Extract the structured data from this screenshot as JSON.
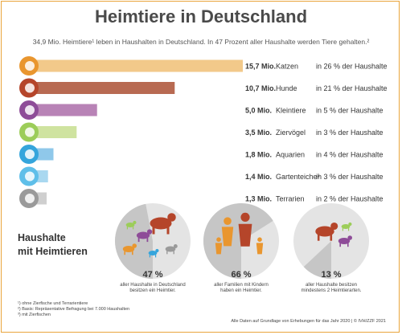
{
  "title": "Heimtiere in Deutschland",
  "subtitle": "34,9 Mio. Heimtiere¹ leben in Haushalten in Deutschland. In 47 Prozent aller Haushalte werden Tiere gehalten.²",
  "chart_data": {
    "type": "bar",
    "orientation": "horizontal",
    "unit": "Mio.",
    "categories": [
      "Katzen",
      "Hunde",
      "Kleintiere",
      "Ziervögel",
      "Aquarien",
      "Gartenteiche³",
      "Terrarien"
    ],
    "values": [
      15.7,
      10.7,
      5.0,
      3.5,
      1.8,
      1.4,
      1.3
    ],
    "value_labels": [
      "15,7 Mio.",
      "10,7 Mio.",
      "5,0 Mio.",
      "3,5 Mio.",
      "1,8 Mio.",
      "1,4 Mio.",
      "1,3 Mio."
    ],
    "household_labels": [
      "in 26 % der Haushalte",
      "in 21 % der Haushalte",
      "in 5 % der Haushalte",
      "in 3 % der Haushalte",
      "in 4 % der Haushalte",
      "in 3 % der Haushalte",
      "in 2 % der Haushalte"
    ],
    "household_percent": [
      26,
      21,
      5,
      3,
      4,
      3,
      2
    ],
    "icons": [
      "cat-icon",
      "dog-icon",
      "rabbit-icon",
      "bird-icon",
      "fish-icon",
      "pond-fish-icon",
      "turtle-icon"
    ],
    "colors": [
      "#f2c98a",
      "#b86a52",
      "#b883b6",
      "#cfe3a0",
      "#8fc8ea",
      "#a9d8f0",
      "#cfcfcf"
    ],
    "icon_colors": [
      "#e9962f",
      "#b5452a",
      "#8e4c98",
      "#9ccd59",
      "#35a5dc",
      "#5fbfe9",
      "#9a9a9a"
    ]
  },
  "households": {
    "heading_line1": "Haushalte",
    "heading_line2": "mit Heimtieren",
    "circles": [
      {
        "percent": 47,
        "label": "47 %",
        "caption_line1": "aller Haushalte in Deutschland",
        "caption_line2": "besitzen ein Heimtier."
      },
      {
        "percent": 66,
        "label": "66 %",
        "caption_line1": "aller Familien mit Kindern",
        "caption_line2": "haben ein Heimtier."
      },
      {
        "percent": 13,
        "label": "13 %",
        "caption_line1": "aller Haushalte besitzen",
        "caption_line2": "mindestens 2 Heimtierarten."
      }
    ]
  },
  "footnotes": [
    "¹) ohne Zierfische und Terrarientiere",
    "²) Basis: Repräsentative Befragung bei 7.000 Haushalten",
    "³) mit Zierfischen"
  ],
  "source": "Alle Daten auf Grundlage von Erhebungen für das Jahr 2020 | © IVH/ZZF 2021"
}
